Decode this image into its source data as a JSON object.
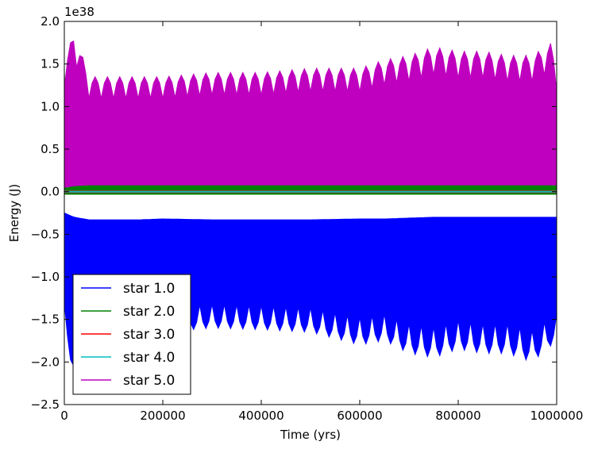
{
  "chart_data": {
    "type": "line",
    "xlabel": "Time (yrs)",
    "ylabel": "Energy (J)",
    "y_scale_label": "1e38",
    "y_scale": 1e+38,
    "xlim": [
      0,
      1000000
    ],
    "ylim": [
      -2.5,
      2.0
    ],
    "x_ticks": [
      0,
      200000,
      400000,
      600000,
      800000,
      1000000
    ],
    "x_tick_labels": [
      "0",
      "200000",
      "400000",
      "600000",
      "800000",
      "1000000"
    ],
    "y_ticks": [
      2.0,
      1.5,
      1.0,
      0.5,
      0.0,
      -0.5,
      -1.0,
      -1.5,
      -2.0,
      -2.5
    ],
    "y_tick_labels": [
      "2.0",
      "1.5",
      "1.0",
      "0.5",
      "0.0",
      "−0.5",
      "−1.0",
      "−1.5",
      "−2.0",
      "−2.5"
    ],
    "grid": false,
    "legend": {
      "placement": "lower-left"
    },
    "series": [
      {
        "name": "star 1.0",
        "color": "#0000ff",
        "shape": "band",
        "x": [
          0,
          20000,
          50000,
          100000,
          150000,
          200000,
          300000,
          400000,
          500000,
          600000,
          650000,
          700000,
          750000,
          800000,
          850000,
          900000,
          950000,
          1000000
        ],
        "y_high": [
          -0.25,
          -0.3,
          -0.33,
          -0.33,
          -0.33,
          -0.32,
          -0.33,
          -0.33,
          -0.33,
          -0.32,
          -0.32,
          -0.31,
          -0.3,
          -0.3,
          -0.3,
          -0.3,
          -0.3,
          -0.3
        ],
        "y_low": [
          -1.6,
          -2.2,
          -1.8,
          -1.75,
          -1.7,
          -1.65,
          -1.6,
          -1.62,
          -1.65,
          -1.8,
          -1.75,
          -1.9,
          -1.95,
          -1.85,
          -1.9,
          -1.9,
          -2.0,
          -1.75
        ]
      },
      {
        "name": "star 2.0",
        "color": "#008000",
        "shape": "band",
        "x": [
          0,
          10000,
          20000,
          100000,
          200000,
          400000,
          600000,
          800000,
          1000000
        ],
        "y_high": [
          1.4,
          0.1,
          0.1,
          0.08,
          0.08,
          0.08,
          0.08,
          0.08,
          0.08
        ],
        "y_low": [
          -0.03,
          -0.03,
          -0.03,
          -0.03,
          -0.03,
          -0.03,
          -0.03,
          -0.03,
          -0.03
        ]
      },
      {
        "name": "star 3.0",
        "color": "#ff0000",
        "shape": "band",
        "x": [
          0,
          1000000
        ],
        "y_high": [
          0.01,
          0.01
        ],
        "y_low": [
          -0.01,
          -0.01
        ]
      },
      {
        "name": "star 4.0",
        "color": "#00bfbf",
        "shape": "band",
        "x": [
          0,
          1000000
        ],
        "y_high": [
          0.005,
          0.005
        ],
        "y_low": [
          -0.005,
          -0.005
        ]
      },
      {
        "name": "star 5.0",
        "color": "#bf00bf",
        "shape": "band",
        "x": [
          0,
          20000,
          50000,
          100000,
          200000,
          300000,
          400000,
          500000,
          600000,
          650000,
          700000,
          750000,
          800000,
          850000,
          900000,
          950000,
          990000,
          1000000
        ],
        "y_high": [
          1.5,
          1.9,
          1.35,
          1.35,
          1.35,
          1.4,
          1.4,
          1.45,
          1.45,
          1.55,
          1.6,
          1.7,
          1.65,
          1.65,
          1.6,
          1.6,
          1.75,
          1.45
        ],
        "y_low": [
          0.05,
          0.07,
          0.08,
          0.08,
          0.08,
          0.08,
          0.08,
          0.08,
          0.08,
          0.08,
          0.08,
          0.08,
          0.08,
          0.08,
          0.08,
          0.08,
          0.08,
          0.08
        ]
      }
    ]
  }
}
